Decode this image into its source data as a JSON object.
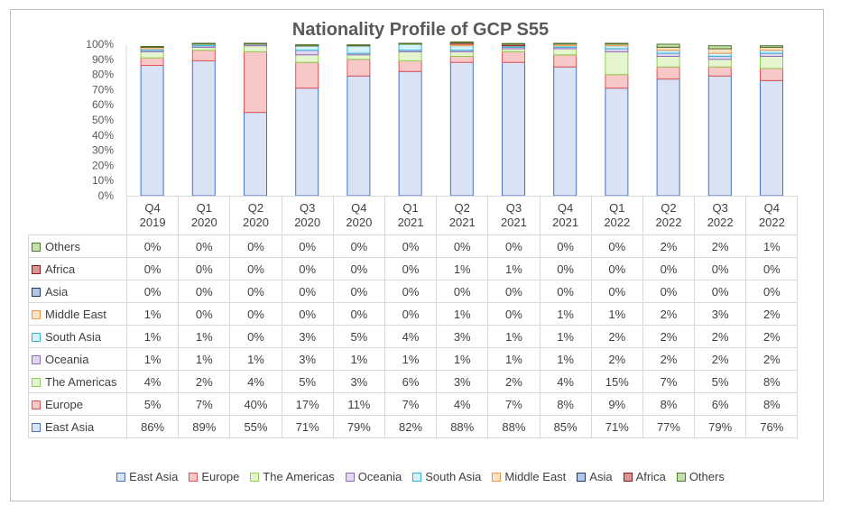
{
  "chart_data": {
    "type": "bar",
    "stacked": true,
    "title": "Nationality Profile of GCP S55",
    "categories": [
      [
        "Q4",
        "2019"
      ],
      [
        "Q1",
        "2020"
      ],
      [
        "Q2",
        "2020"
      ],
      [
        "Q3",
        "2020"
      ],
      [
        "Q4",
        "2020"
      ],
      [
        "Q1",
        "2021"
      ],
      [
        "Q2",
        "2021"
      ],
      [
        "Q3",
        "2021"
      ],
      [
        "Q4",
        "2021"
      ],
      [
        "Q1",
        "2022"
      ],
      [
        "Q2",
        "2022"
      ],
      [
        "Q3",
        "2022"
      ],
      [
        "Q4",
        "2022"
      ]
    ],
    "ylim": [
      0,
      100
    ],
    "y_ticks": [
      "0%",
      "10%",
      "20%",
      "30%",
      "40%",
      "50%",
      "60%",
      "70%",
      "80%",
      "90%",
      "100%"
    ],
    "series": [
      {
        "name": "East Asia",
        "color": "#4472c4",
        "fill": "#dae3f3",
        "values": [
          86,
          89,
          55,
          71,
          79,
          82,
          88,
          88,
          85,
          71,
          77,
          79,
          76
        ],
        "labels": [
          "86%",
          "89%",
          "55%",
          "71%",
          "79%",
          "82%",
          "88%",
          "88%",
          "85%",
          "71%",
          "77%",
          "79%",
          "76%"
        ]
      },
      {
        "name": "Europe",
        "color": "#e05555",
        "fill": "#f8c7c7",
        "values": [
          5,
          7,
          40,
          17,
          11,
          7,
          4,
          7,
          8,
          9,
          8,
          6,
          8
        ],
        "labels": [
          "5%",
          "7%",
          "40%",
          "17%",
          "11%",
          "7%",
          "4%",
          "7%",
          "8%",
          "9%",
          "8%",
          "6%",
          "8%"
        ]
      },
      {
        "name": "The Americas",
        "color": "#8fd14f",
        "fill": "#e4f5d0",
        "values": [
          4,
          2,
          4,
          5,
          3,
          6,
          3,
          2,
          4,
          15,
          7,
          5,
          8
        ],
        "labels": [
          "4%",
          "2%",
          "4%",
          "5%",
          "3%",
          "6%",
          "3%",
          "2%",
          "4%",
          "15%",
          "7%",
          "5%",
          "8%"
        ]
      },
      {
        "name": "Oceania",
        "color": "#8e6bbf",
        "fill": "#e2d7f1",
        "values": [
          1,
          1,
          1,
          3,
          1,
          1,
          1,
          1,
          1,
          2,
          2,
          2,
          2
        ],
        "labels": [
          "1%",
          "1%",
          "1%",
          "3%",
          "1%",
          "1%",
          "1%",
          "1%",
          "1%",
          "2%",
          "2%",
          "2%",
          "2%"
        ]
      },
      {
        "name": "South Asia",
        "color": "#2fb3d1",
        "fill": "#d2f1fa",
        "values": [
          1,
          1,
          0,
          3,
          5,
          4,
          3,
          1,
          1,
          2,
          2,
          2,
          2
        ],
        "labels": [
          "1%",
          "1%",
          "0%",
          "3%",
          "5%",
          "4%",
          "3%",
          "1%",
          "1%",
          "2%",
          "2%",
          "2%",
          "2%"
        ]
      },
      {
        "name": "Middle East",
        "color": "#f79646",
        "fill": "#fde2c8",
        "values": [
          1,
          0,
          0,
          0,
          0,
          0,
          1,
          0,
          1,
          1,
          2,
          3,
          2
        ],
        "labels": [
          "1%",
          "0%",
          "0%",
          "0%",
          "0%",
          "0%",
          "1%",
          "0%",
          "1%",
          "1%",
          "2%",
          "3%",
          "2%"
        ]
      },
      {
        "name": "Asia",
        "color": "#1f3864",
        "fill": "#b4c6e7",
        "values": [
          0,
          0,
          0,
          0,
          0,
          0,
          0,
          0,
          0,
          0,
          0,
          0,
          0
        ],
        "labels": [
          "0%",
          "0%",
          "0%",
          "0%",
          "0%",
          "0%",
          "0%",
          "0%",
          "0%",
          "0%",
          "0%",
          "0%",
          "0%"
        ]
      },
      {
        "name": "Africa",
        "color": "#8b1a1a",
        "fill": "#d99694",
        "values": [
          0,
          0,
          0,
          0,
          0,
          0,
          1,
          1,
          0,
          0,
          0,
          0,
          0
        ],
        "labels": [
          "0%",
          "0%",
          "0%",
          "0%",
          "0%",
          "0%",
          "1%",
          "1%",
          "0%",
          "0%",
          "0%",
          "0%",
          "0%"
        ]
      },
      {
        "name": "Others",
        "color": "#4f7a28",
        "fill": "#c4dfae",
        "values": [
          0,
          0,
          0,
          0,
          0,
          0,
          0,
          0,
          0,
          0,
          2,
          2,
          1
        ],
        "labels": [
          "0%",
          "0%",
          "0%",
          "0%",
          "0%",
          "0%",
          "0%",
          "0%",
          "0%",
          "0%",
          "2%",
          "2%",
          "1%"
        ]
      }
    ],
    "table_row_order": [
      "Others",
      "Africa",
      "Asia",
      "Middle East",
      "South Asia",
      "Oceania",
      "The Americas",
      "Europe",
      "East Asia"
    ],
    "legend": {
      "position": "bottom",
      "items": [
        "East Asia",
        "Europe",
        "The Americas",
        "Oceania",
        "South Asia",
        "Middle East",
        "Asia",
        "Africa",
        "Others"
      ]
    },
    "grid": false
  }
}
